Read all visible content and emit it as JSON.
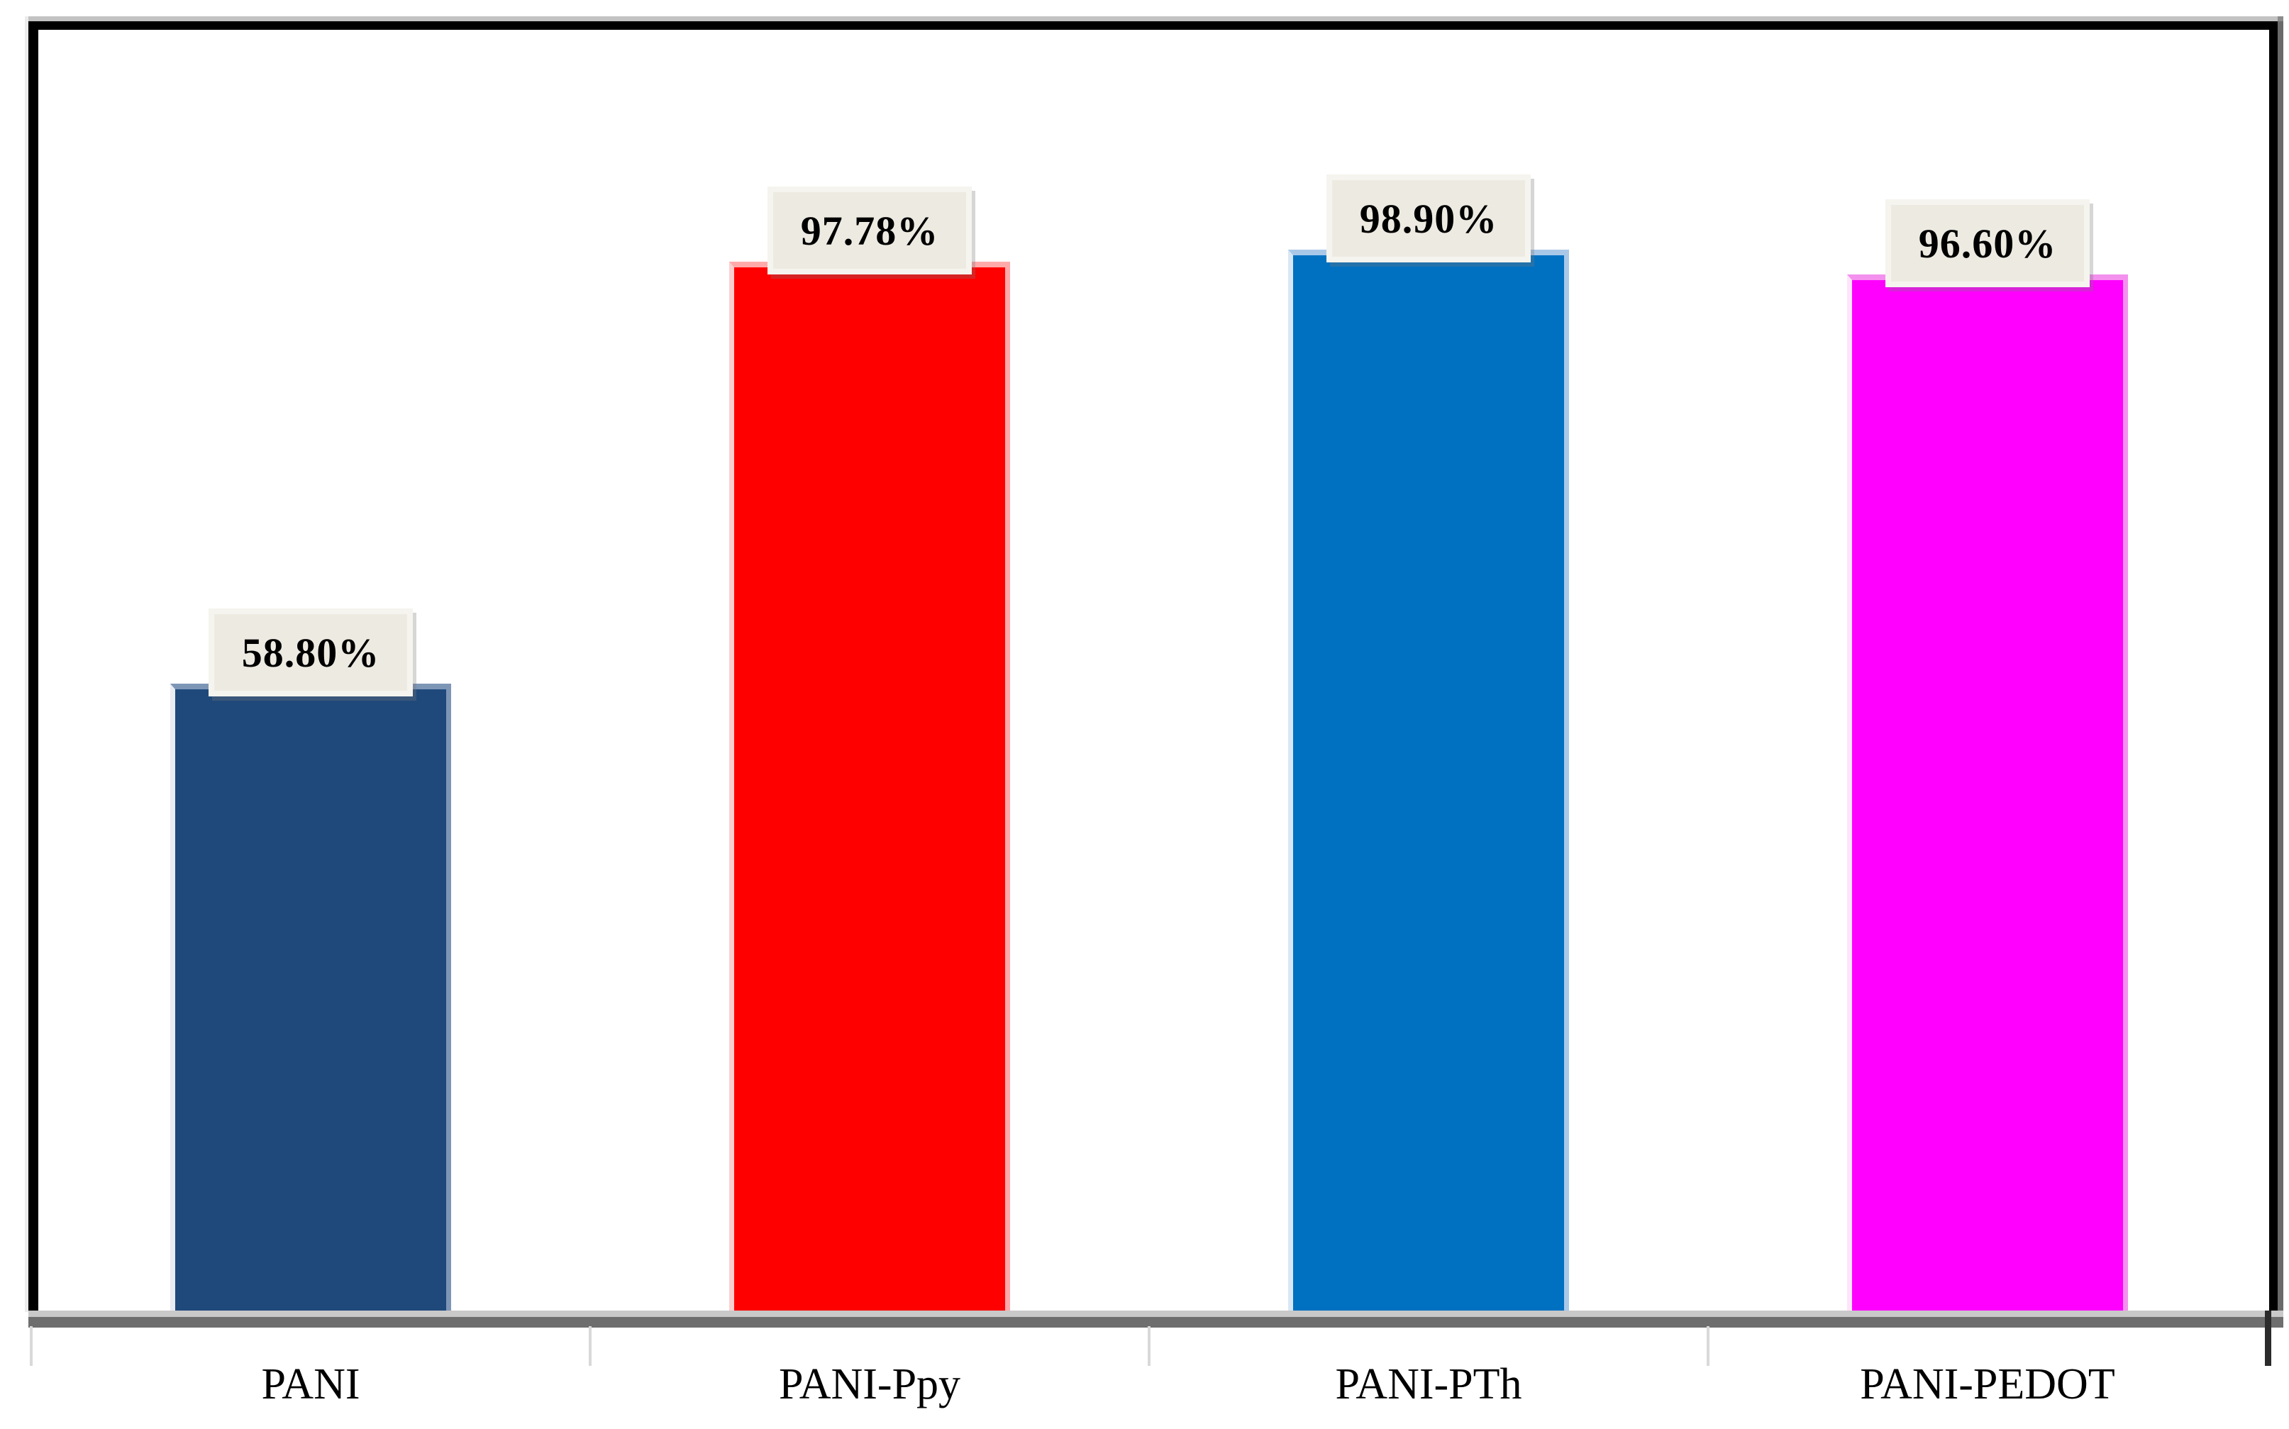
{
  "chart_data": {
    "type": "bar",
    "title": "",
    "xlabel": "",
    "ylabel": "",
    "categories": [
      "PANI",
      "PANI-Ppy",
      "PANI-PTh",
      "PANI-PEDOT"
    ],
    "values": [
      58.8,
      97.78,
      98.9,
      96.6
    ],
    "value_labels": [
      "58.80%",
      "97.78%",
      "98.90%",
      "96.60%"
    ],
    "ylim": [
      0,
      119
    ],
    "grid": false,
    "legend": null,
    "bar_colors": [
      "#20497B",
      "#FF0000",
      "#0070C0",
      "#FF00FF"
    ],
    "bar_top_highlights": [
      "#7E96B6",
      "#FFAAAA",
      "#A9C8E8",
      "#F490EE"
    ],
    "bar_left_highlights": [
      "#E9ECF2",
      "#FBCFCF",
      "#D9E7F4",
      "#FDE4FB"
    ],
    "label_box_bg": "#EDEBE1",
    "label_text_color": "#000000",
    "axis_light_color": "#C9C9C9",
    "axis_dark_color": "#6E6E6E",
    "tick_color": "#D9D9D9",
    "frame_color": "#000000"
  }
}
